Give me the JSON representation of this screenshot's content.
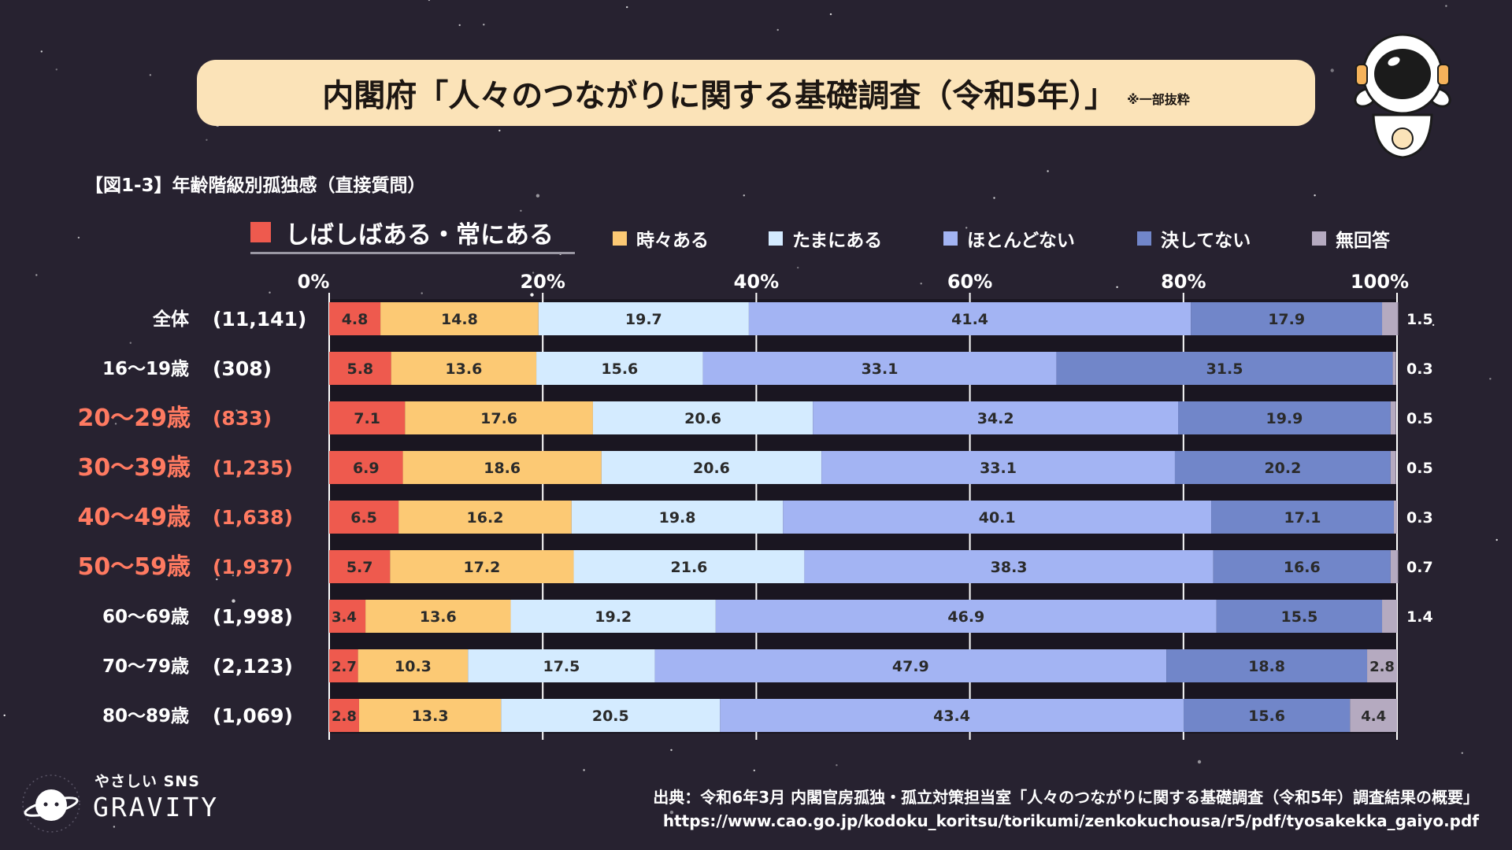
{
  "banner": {
    "title": "内閣府「人々のつながりに関する基礎調査（令和5年）」",
    "note": "※一部抜粋"
  },
  "figure_title": "【図1-3】年齢階級別孤独感（直接質問）",
  "legend": {
    "main": "しばしばある・常にある",
    "items": [
      "時々ある",
      "たまにある",
      "ほとんどない",
      "決してない",
      "無回答"
    ]
  },
  "colors": {
    "often": "#ee5a4e",
    "sometimes": "#fcc974",
    "occasionally": "#d4ebff",
    "rarely": "#a3b4f3",
    "never": "#7186c9",
    "no_answer": "#b5aac0",
    "highlight_text": "#ff7a61",
    "background": "#272230",
    "banner": "#fbe3b8"
  },
  "chart_data": {
    "type": "bar",
    "orientation": "horizontal-stacked-100",
    "xlim": [
      0,
      100
    ],
    "xticks": [
      "0%",
      "20%",
      "40%",
      "60%",
      "80%",
      "100%"
    ],
    "series_names": [
      "しばしばある・常にある",
      "時々ある",
      "たまにある",
      "ほとんどない",
      "決してない",
      "無回答"
    ],
    "rows": [
      {
        "label": "全体",
        "n": "(11,141)",
        "highlight": false,
        "values": [
          4.8,
          14.8,
          19.7,
          41.4,
          17.9,
          1.5
        ]
      },
      {
        "label": "16〜19歳",
        "n": "(308)",
        "highlight": false,
        "values": [
          5.8,
          13.6,
          15.6,
          33.1,
          31.5,
          0.3
        ]
      },
      {
        "label": "20〜29歳",
        "n": "(833)",
        "highlight": true,
        "values": [
          7.1,
          17.6,
          20.6,
          34.2,
          19.9,
          0.5
        ]
      },
      {
        "label": "30〜39歳",
        "n": "(1,235)",
        "highlight": true,
        "values": [
          6.9,
          18.6,
          20.6,
          33.1,
          20.2,
          0.5
        ]
      },
      {
        "label": "40〜49歳",
        "n": "(1,638)",
        "highlight": true,
        "values": [
          6.5,
          16.2,
          19.8,
          40.1,
          17.1,
          0.3
        ]
      },
      {
        "label": "50〜59歳",
        "n": "(1,937)",
        "highlight": true,
        "values": [
          5.7,
          17.2,
          21.6,
          38.3,
          16.6,
          0.7
        ]
      },
      {
        "label": "60〜69歳",
        "n": "(1,998)",
        "highlight": false,
        "values": [
          3.4,
          13.6,
          19.2,
          46.9,
          15.5,
          1.4
        ]
      },
      {
        "label": "70〜79歳",
        "n": "(2,123)",
        "highlight": false,
        "values": [
          2.7,
          10.3,
          17.5,
          47.9,
          18.8,
          2.8
        ]
      },
      {
        "label": "80〜89歳",
        "n": "(1,069)",
        "highlight": false,
        "values": [
          2.8,
          13.3,
          20.5,
          43.4,
          15.6,
          4.4
        ]
      }
    ]
  },
  "logo": {
    "small": "やさしい SNS",
    "big": "GRAVITY"
  },
  "source": {
    "line1": "出典：令和6年3月 内閣官房孤独・孤立対策担当室「人々のつながりに関する基礎調査（令和5年）調査結果の概要」",
    "line2": "https://www.cao.go.jp/kodoku_koritsu/torikumi/zenkokuchousa/r5/pdf/tyosakekka_gaiyo.pdf"
  }
}
